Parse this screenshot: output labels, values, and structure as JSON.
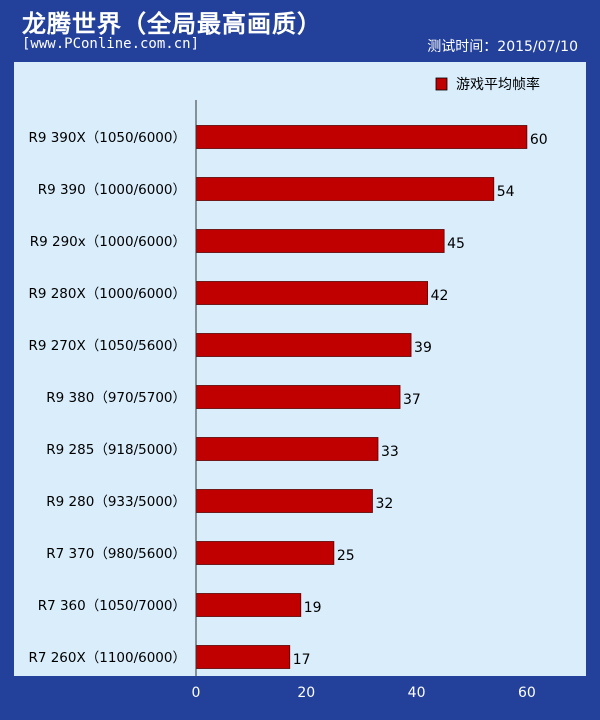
{
  "header": {
    "title": "龙腾世界（全局最高画质）",
    "site": "[www.PConline.com.cn]",
    "date": "测试时间：2015/07/10"
  },
  "colors": {
    "background": "#23419a",
    "plot_area": "#d9edfb",
    "bar": "#c00000",
    "text": "#000000",
    "axis_text": "#ffffff"
  },
  "chart_data": {
    "type": "bar",
    "orientation": "horizontal",
    "categories": [
      "R9 390X（1050/6000）",
      "R9 390（1000/6000）",
      "R9 290x（1000/6000）",
      "R9 280X（1000/6000）",
      "R9 270X（1050/5600）",
      "R9 380（970/5700）",
      "R9 285（918/5000）",
      "R9 280（933/5000）",
      "R7 370（980/5600）",
      "R7 360（1050/7000）",
      "R7 260X（1100/6000）"
    ],
    "series": [
      {
        "name": "游戏平均帧率",
        "values": [
          60,
          54,
          45,
          42,
          39,
          37,
          33,
          32,
          25,
          19,
          17
        ]
      }
    ],
    "xlim": [
      0,
      70
    ],
    "xticks": [
      0,
      20,
      40,
      60
    ],
    "grid": false,
    "legend": "top-right",
    "data_labels": true
  }
}
